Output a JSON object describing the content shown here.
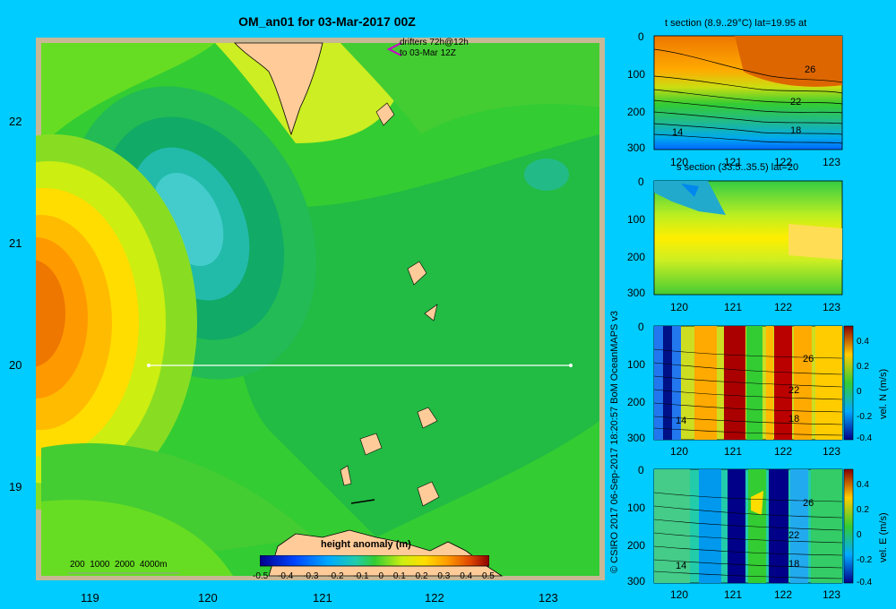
{
  "main_map": {
    "title": "OM_an01 for 03-Mar-2017 00Z",
    "drifters_line1": "drifters 72h@12h",
    "drifters_line2": "to 03-Mar 12Z",
    "x_ticks": [
      "119",
      "120",
      "121",
      "122",
      "123"
    ],
    "y_ticks": [
      "22",
      "21",
      "20",
      "19"
    ],
    "depth_legend": "200  1000  2000  4000m",
    "colorbar_title": "height anomaly (m)",
    "colorbar_ticks": [
      "-0.5",
      "-0.4",
      "-0.3",
      "-0.2",
      "-0.1",
      "0",
      "0.1",
      "0.2",
      "0.3",
      "0.4",
      "0.5"
    ],
    "section_line": {
      "lon_start": 119.5,
      "lon_end": 123.2,
      "lat": 20
    }
  },
  "side_credit": "© CSIRO 2017   06-Sep-2017 18:20:57 BoM OceanMAPS v3",
  "panels": {
    "t_section": {
      "title": "t section (8.9..29°C) lat=19.95 at",
      "x_ticks": [
        "120",
        "121",
        "122",
        "123"
      ],
      "y_ticks": [
        "0",
        "100",
        "200",
        "300"
      ],
      "contour_labels": [
        "26",
        "22",
        "18",
        "14"
      ]
    },
    "s_section": {
      "title": "s section (33.5..35.5) lat=20",
      "x_ticks": [
        "120",
        "121",
        "122",
        "123"
      ],
      "y_ticks": [
        "0",
        "100",
        "200",
        "300"
      ]
    },
    "vn_section": {
      "x_ticks": [
        "120",
        "121",
        "122",
        "123"
      ],
      "y_ticks": [
        "0",
        "100",
        "200",
        "300"
      ],
      "contour_labels": [
        "26",
        "22",
        "18",
        "14"
      ],
      "colorbar_label": "vel. N  (m/s)",
      "colorbar_ticks": [
        "0.4",
        "0.2",
        "0",
        "-0.2",
        "-0.4"
      ]
    },
    "ve_section": {
      "x_ticks": [
        "120",
        "121",
        "122",
        "123"
      ],
      "y_ticks": [
        "0",
        "100",
        "200",
        "300"
      ],
      "contour_labels": [
        "26",
        "22",
        "18",
        "14"
      ],
      "colorbar_label": "vel. E  (m/s)",
      "colorbar_ticks": [
        "0.4",
        "0.2",
        "0",
        "-0.2",
        "-0.4"
      ]
    }
  }
}
